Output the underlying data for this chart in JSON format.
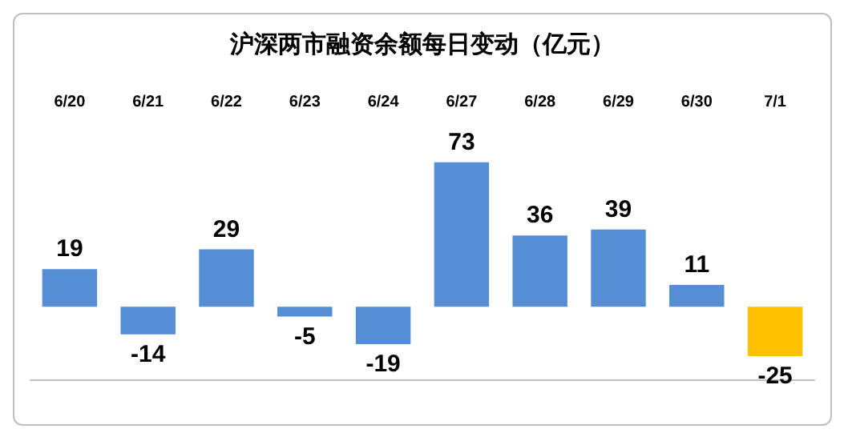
{
  "chart_data": {
    "type": "bar",
    "title": "沪深两市融资余额每日变动（亿元）",
    "categories": [
      "6/20",
      "6/21",
      "6/22",
      "6/23",
      "6/24",
      "6/27",
      "6/28",
      "6/29",
      "6/30",
      "7/1"
    ],
    "values": [
      19,
      -14,
      29,
      -5,
      -19,
      73,
      36,
      39,
      11,
      -25
    ],
    "colors": [
      "#558ed5",
      "#558ed5",
      "#558ed5",
      "#558ed5",
      "#558ed5",
      "#558ed5",
      "#558ed5",
      "#558ed5",
      "#558ed5",
      "#ffc000"
    ],
    "data_labels": true
  }
}
